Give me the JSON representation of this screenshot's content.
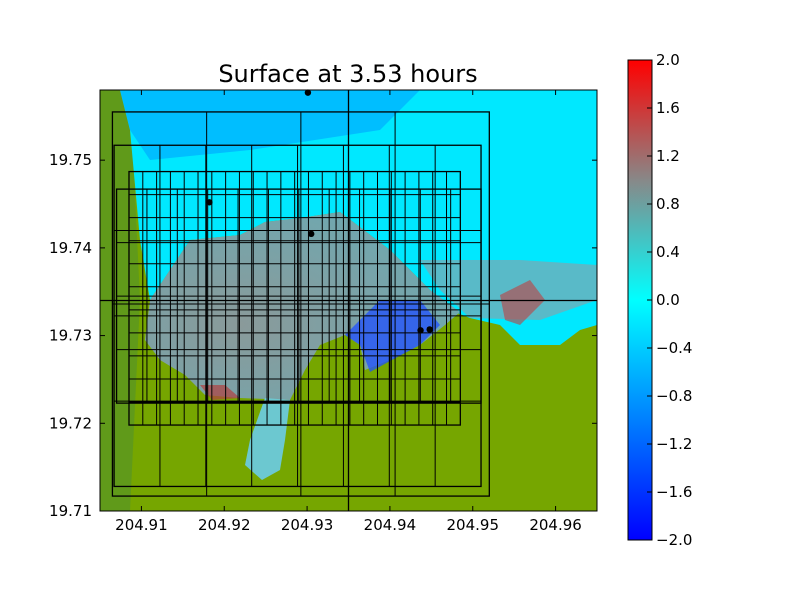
{
  "chart_data": {
    "type": "heatmap",
    "title": "Surface at 3.53 hours",
    "xlabel": "",
    "ylabel": "",
    "xlim": [
      204.905,
      204.965
    ],
    "ylim": [
      19.71,
      19.758
    ],
    "x_ticks": [
      204.91,
      204.92,
      204.93,
      204.94,
      204.95,
      204.96
    ],
    "x_tick_labels": [
      "204.91",
      "204.92",
      "204.93",
      "204.94",
      "204.95",
      "204.96"
    ],
    "y_ticks": [
      19.71,
      19.72,
      19.73,
      19.74,
      19.75
    ],
    "y_tick_labels": [
      "19.71",
      "19.72",
      "19.73",
      "19.74",
      "19.75"
    ],
    "colorbar": {
      "range": [
        -2.0,
        2.0
      ],
      "ticks": [
        2.0,
        1.6,
        1.2,
        0.8,
        0.4,
        0.0,
        -0.4,
        -0.8,
        -1.2,
        -1.6,
        -2.0
      ],
      "tick_labels": [
        "2.0",
        "1.6",
        "1.2",
        "0.8",
        "0.4",
        "0.0",
        "−0.4",
        "−0.8",
        "−1.2",
        "−1.6",
        "−2.0"
      ],
      "colors": [
        "#0000ff",
        "#00ffff",
        "#888888",
        "#ff0000"
      ]
    },
    "land_color": "#76a600",
    "grid_patches": [
      {
        "x0": 204.9065,
        "x1": 204.952,
        "y0": 19.7117,
        "y1": 19.7555
      },
      {
        "x0": 204.9067,
        "x1": 204.951,
        "y0": 19.7128,
        "y1": 19.7517
      },
      {
        "x0": 204.907,
        "x1": 204.951,
        "y0": 19.7223,
        "y1": 19.7467
      },
      {
        "x0": 204.9085,
        "x1": 204.9485,
        "y0": 19.7198,
        "y1": 19.7487
      }
    ],
    "gauges": [
      {
        "x": 204.9301,
        "y": 19.7577
      },
      {
        "x": 204.9182,
        "y": 19.7452
      },
      {
        "x": 204.9305,
        "y": 19.7416
      },
      {
        "x": 204.9437,
        "y": 19.7306
      },
      {
        "x": 204.9448,
        "y": 19.7307
      }
    ],
    "crosshair": {
      "x": 204.935,
      "y": 19.734
    }
  }
}
